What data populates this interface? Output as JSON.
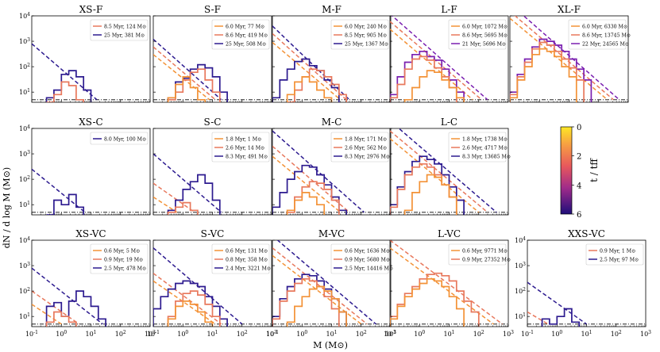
{
  "figure": {
    "ylabel": "dN / d log M (M⊙)",
    "xlabel": "M (M⊙)",
    "colorbar": {
      "label": "t / tff",
      "ticks": [
        "0",
        "2",
        "4",
        "6"
      ],
      "min": 0,
      "max": 6
    }
  },
  "colors": {
    "t1": "#f39237",
    "t2": "#e8785c",
    "t3": "#2c1a8f",
    "t3_violet": "#7a1fb0",
    "threshold": "#000000"
  },
  "chart_data": [
    {
      "type": "step",
      "title": "XS-F",
      "legend": [
        "8.5 Myr, 124 M⊙",
        "25 Myr, 381 M⊙"
      ],
      "series_colors": [
        "t2",
        "t3"
      ],
      "hist": [
        {
          "series": 1,
          "values": [
            6,
            12,
            50,
            70,
            40,
            12
          ]
        },
        {
          "series": 0,
          "values": [
            3,
            8,
            25,
            18,
            5
          ]
        }
      ],
      "lines": [
        {
          "series": 1,
          "pts": [
            [
              -1,
              800
            ],
            [
              1.2,
              5
            ]
          ]
        }
      ]
    },
    {
      "type": "step",
      "title": "S-F",
      "legend": [
        "6.0 Myr, 77 M⊙",
        "8.6 Myr, 419 M⊙",
        "25 Myr, 508 M⊙"
      ],
      "series_colors": [
        "t1",
        "t2",
        "t3"
      ],
      "hist": [
        {
          "series": 2,
          "values": [
            6,
            25,
            35,
            80,
            120,
            90,
            40,
            10
          ]
        },
        {
          "series": 1,
          "values": [
            5,
            10,
            30,
            60,
            80,
            30,
            10
          ]
        },
        {
          "series": 0,
          "values": [
            6,
            20,
            40,
            15,
            5
          ]
        }
      ],
      "lines": [
        {
          "series": 2,
          "pts": [
            [
              -1,
              1200
            ],
            [
              1.3,
              5
            ]
          ]
        },
        {
          "series": 1,
          "pts": [
            [
              -1,
              600
            ],
            [
              1.1,
              5
            ]
          ]
        },
        {
          "series": 0,
          "pts": [
            [
              -1,
              300
            ],
            [
              0.9,
              5
            ]
          ]
        }
      ]
    },
    {
      "type": "step",
      "title": "M-F",
      "legend": [
        "6.0 Myr, 240 M⊙",
        "8.5 Myr, 905 M⊙",
        "25 Myr, 1367 M⊙"
      ],
      "series_colors": [
        "t1",
        "t2",
        "t3"
      ],
      "hist": [
        {
          "series": 2,
          "values": [
            6,
            30,
            80,
            160,
            200,
            110,
            70,
            30,
            15
          ]
        },
        {
          "series": 1,
          "values": [
            4,
            12,
            40,
            80,
            70,
            40,
            20,
            8
          ]
        },
        {
          "series": 0,
          "values": [
            8,
            25,
            40,
            25,
            12,
            6
          ]
        }
      ],
      "lines": [
        {
          "series": 2,
          "pts": [
            [
              -1,
              4000
            ],
            [
              1.6,
              5
            ]
          ]
        },
        {
          "series": 1,
          "pts": [
            [
              -1,
              2000
            ],
            [
              1.5,
              5
            ]
          ]
        },
        {
          "series": 0,
          "pts": [
            [
              -1,
              900
            ],
            [
              1.3,
              5
            ]
          ]
        }
      ]
    },
    {
      "type": "step",
      "title": "L-F",
      "legend": [
        "6.0 Myr, 1072 M⊙",
        "8.6 Myr, 5695 M⊙",
        "21 Myr, 5696 M⊙"
      ],
      "series_colors": [
        "t1",
        "t2",
        "t3_violet"
      ],
      "hist": [
        {
          "series": 2,
          "values": [
            8,
            40,
            150,
            300,
            400,
            250,
            180,
            80,
            30,
            10
          ]
        },
        {
          "series": 1,
          "values": [
            6,
            20,
            80,
            200,
            250,
            180,
            90,
            40,
            15
          ]
        },
        {
          "series": 0,
          "values": [
            5,
            15,
            40,
            70,
            60,
            30,
            15,
            6
          ]
        }
      ],
      "lines": [
        {
          "series": 2,
          "pts": [
            [
              -1,
              12000
            ],
            [
              2.3,
              5
            ]
          ]
        },
        {
          "series": 1,
          "pts": [
            [
              -1,
              6000
            ],
            [
              2.1,
              5
            ]
          ]
        },
        {
          "series": 0,
          "pts": [
            [
              -1,
              3000
            ],
            [
              1.8,
              5
            ]
          ]
        }
      ]
    },
    {
      "type": "step",
      "title": "XL-F",
      "legend": [
        "6.0 Myr, 6330 M⊙",
        "8.6 Myr, 13745 M⊙",
        "22 Myr, 24565 M⊙"
      ],
      "series_colors": [
        "t1",
        "t2",
        "t3_violet"
      ],
      "hist": [
        {
          "series": 2,
          "values": [
            10,
            50,
            200,
            600,
            1200,
            1000,
            700,
            400,
            200,
            80,
            30
          ]
        },
        {
          "series": 1,
          "values": [
            8,
            40,
            150,
            500,
            900,
            700,
            400,
            200,
            90,
            30
          ]
        },
        {
          "series": 0,
          "values": [
            6,
            30,
            100,
            300,
            500,
            400,
            250,
            100,
            40
          ]
        }
      ],
      "lines": [
        {
          "series": 2,
          "pts": [
            [
              -1,
              30000
            ],
            [
              2.7,
              5
            ]
          ]
        },
        {
          "series": 1,
          "pts": [
            [
              -1,
              15000
            ],
            [
              2.5,
              5
            ]
          ]
        },
        {
          "series": 0,
          "pts": [
            [
              -1,
              8000
            ],
            [
              2.3,
              5
            ]
          ]
        }
      ]
    },
    {
      "type": "step",
      "title": "XS-C",
      "legend": [
        "8.0 Myr, 100 M⊙"
      ],
      "series_colors": [
        "t3"
      ],
      "hist": [
        {
          "series": 0,
          "values": [
            0,
            15,
            10,
            25,
            8
          ]
        }
      ],
      "lines": [
        {
          "series": 0,
          "pts": [
            [
              -1,
              250
            ],
            [
              0.8,
              5
            ]
          ]
        }
      ]
    },
    {
      "type": "step",
      "title": "S-C",
      "legend": [
        "1.8 Myr, 1 M⊙",
        "2.6 Myr, 14 M⊙",
        "8.3 Myr, 491 M⊙"
      ],
      "series_colors": [
        "t1",
        "t2",
        "t3"
      ],
      "hist": [
        {
          "series": 2,
          "values": [
            6,
            15,
            40,
            80,
            150,
            70,
            15
          ]
        },
        {
          "series": 1,
          "values": [
            5,
            8,
            12,
            6
          ]
        }
      ],
      "lines": [
        {
          "series": 2,
          "pts": [
            [
              -1,
              1000
            ],
            [
              1.3,
              5
            ]
          ]
        },
        {
          "series": 1,
          "pts": [
            [
              -1,
              70
            ],
            [
              0.4,
              5
            ]
          ]
        },
        {
          "series": 0,
          "pts": [
            [
              -1,
              20
            ],
            [
              -0.2,
              5
            ]
          ]
        }
      ]
    },
    {
      "type": "step",
      "title": "M-C",
      "legend": [
        "1.8 Myr, 171 M⊙",
        "2.6 Myr, 562 M⊙",
        "8.3 Myr, 2976 M⊙"
      ],
      "series_colors": [
        "t1",
        "t2",
        "t3"
      ],
      "hist": [
        {
          "series": 2,
          "values": [
            8,
            30,
            100,
            200,
            350,
            300,
            150,
            60,
            20,
            6
          ]
        },
        {
          "series": 1,
          "values": [
            5,
            20,
            50,
            80,
            70,
            40,
            15
          ]
        },
        {
          "series": 0,
          "values": [
            6,
            15,
            30,
            20,
            10
          ]
        }
      ],
      "lines": [
        {
          "series": 2,
          "pts": [
            [
              -1,
              8000
            ],
            [
              2.1,
              5
            ]
          ]
        },
        {
          "series": 1,
          "pts": [
            [
              -1,
              2000
            ],
            [
              1.6,
              5
            ]
          ]
        },
        {
          "series": 0,
          "pts": [
            [
              -1,
              800
            ],
            [
              1.3,
              5
            ]
          ]
        }
      ]
    },
    {
      "type": "step",
      "title": "L-C",
      "legend": [
        "1.8 Myr, 1738 M⊙",
        "2.6 Myr, 4717 M⊙",
        "8.3 Myr, 13685 M⊙"
      ],
      "series_colors": [
        "t1",
        "t2",
        "t3"
      ],
      "hist": [
        {
          "series": 2,
          "values": [
            10,
            50,
            200,
            500,
            800,
            600,
            400,
            150,
            50,
            15
          ]
        },
        {
          "series": 1,
          "values": [
            8,
            40,
            150,
            300,
            400,
            300,
            150,
            60,
            20
          ]
        },
        {
          "series": 0,
          "values": [
            6,
            30,
            80,
            150,
            120,
            60,
            20
          ]
        }
      ],
      "lines": [
        {
          "series": 2,
          "pts": [
            [
              -1,
              20000
            ],
            [
              2.6,
              5
            ]
          ]
        },
        {
          "series": 1,
          "pts": [
            [
              -1,
              8000
            ],
            [
              2.3,
              5
            ]
          ]
        },
        {
          "series": 0,
          "pts": [
            [
              -1,
              4000
            ],
            [
              2.0,
              5
            ]
          ]
        }
      ]
    },
    {
      "type": "step",
      "title": "XS-VC",
      "legend": [
        "0.6 Myr, 5 M⊙",
        "0.9 Myr, 19 M⊙",
        "2.5 Myr, 478 M⊙"
      ],
      "series_colors": [
        "t1",
        "t2",
        "t3"
      ],
      "hist": [
        {
          "series": 2,
          "values": [
            25,
            35,
            10,
            40,
            100,
            60,
            25,
            8
          ]
        },
        {
          "series": 1,
          "values": [
            6,
            15,
            10,
            6
          ]
        }
      ],
      "lines": [
        {
          "series": 2,
          "pts": [
            [
              -1,
              800
            ],
            [
              1.4,
              5
            ]
          ]
        },
        {
          "series": 1,
          "pts": [
            [
              -1,
              100
            ],
            [
              0.6,
              5
            ]
          ]
        },
        {
          "series": 0,
          "pts": [
            [
              -1,
              30
            ],
            [
              0.0,
              5
            ]
          ]
        }
      ]
    },
    {
      "type": "step",
      "title": "S-VC",
      "legend": [
        "0.6 Myr, 131 M⊙",
        "0.8 Myr, 358 M⊙",
        "2.4 Myr, 3221 M⊙"
      ],
      "series_colors": [
        "t1",
        "t2",
        "t3"
      ],
      "hist": [
        {
          "series": 2,
          "values": [
            20,
            60,
            120,
            200,
            250,
            200,
            150,
            60,
            25,
            8
          ]
        },
        {
          "series": 1,
          "values": [
            10,
            40,
            80,
            100,
            70,
            30,
            10
          ]
        },
        {
          "series": 0,
          "values": [
            8,
            25,
            40,
            30,
            15,
            6
          ]
        }
      ],
      "lines": [
        {
          "series": 2,
          "pts": [
            [
              -1,
              5000
            ],
            [
              2.0,
              5
            ]
          ]
        },
        {
          "series": 1,
          "pts": [
            [
              -1,
              500
            ],
            [
              1.3,
              5
            ]
          ]
        },
        {
          "series": 0,
          "pts": [
            [
              -1,
              250
            ],
            [
              1.1,
              5
            ]
          ]
        }
      ]
    },
    {
      "type": "step",
      "title": "M-VC",
      "legend": [
        "0.6 Myr, 1636 M⊙",
        "0.9 Myr, 5680 M⊙",
        "2.5 Myr, 14416 M⊙"
      ],
      "series_colors": [
        "t1",
        "t2",
        "t3"
      ],
      "hist": [
        {
          "series": 2,
          "values": [
            10,
            50,
            150,
            300,
            450,
            400,
            250,
            120,
            50,
            15
          ]
        },
        {
          "series": 1,
          "values": [
            8,
            40,
            100,
            200,
            300,
            250,
            150,
            60,
            20
          ]
        },
        {
          "series": 0,
          "values": [
            6,
            25,
            60,
            120,
            150,
            100,
            50,
            15
          ]
        }
      ],
      "lines": [
        {
          "series": 2,
          "pts": [
            [
              -1,
              15000
            ],
            [
              2.5,
              5
            ]
          ]
        },
        {
          "series": 1,
          "pts": [
            [
              -1,
              5000
            ],
            [
              2.2,
              5
            ]
          ]
        },
        {
          "series": 0,
          "pts": [
            [
              -1,
              2500
            ],
            [
              2.0,
              5
            ]
          ]
        }
      ]
    },
    {
      "type": "step",
      "title": "L-VC",
      "legend": [
        "0.6 Myr, 9771 M⊙",
        "0.9 Myr, 27352 M⊙"
      ],
      "series_colors": [
        "t1",
        "t2"
      ],
      "hist": [
        {
          "series": 1,
          "values": [
            10,
            30,
            80,
            150,
            300,
            450,
            500,
            400,
            250,
            100,
            40,
            15
          ]
        },
        {
          "series": 0,
          "values": [
            8,
            25,
            60,
            120,
            200,
            300,
            250,
            150,
            60,
            20
          ]
        }
      ],
      "lines": [
        {
          "series": 1,
          "pts": [
            [
              -1,
              10000
            ],
            [
              2.8,
              5
            ]
          ]
        },
        {
          "series": 0,
          "pts": [
            [
              -1,
              5000
            ],
            [
              2.5,
              5
            ]
          ]
        }
      ]
    },
    {
      "type": "step",
      "title": "XXS-VC",
      "legend": [
        "0.9 Myr, 1 M⊙",
        "2.5 Myr, 97 M⊙"
      ],
      "series_colors": [
        "t2",
        "t3"
      ],
      "hist": [
        {
          "series": 1,
          "values": [
            8,
            5,
            10,
            20,
            6
          ]
        }
      ],
      "lines": [
        {
          "series": 1,
          "pts": [
            [
              -1,
              220
            ],
            [
              1.0,
              5
            ]
          ]
        },
        {
          "series": 0,
          "pts": [
            [
              -1,
              15
            ],
            [
              -0.3,
              5
            ]
          ]
        }
      ]
    }
  ]
}
